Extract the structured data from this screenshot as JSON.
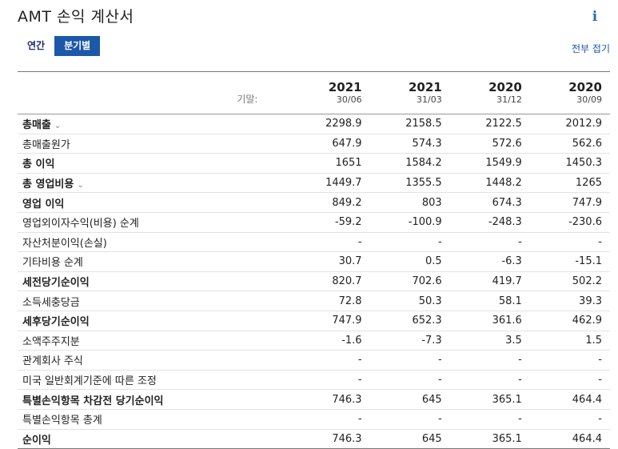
{
  "header": {
    "title": "AMT 손익 계산서",
    "info_icon": "info-icon"
  },
  "tabs": [
    {
      "label": "연간",
      "active": false
    },
    {
      "label": "분기별",
      "active": true
    }
  ],
  "collapse_all_label": "전부 접기",
  "table": {
    "period_end_label": "기말:",
    "periods": [
      {
        "year": "2021",
        "date": "30/06"
      },
      {
        "year": "2021",
        "date": "31/03"
      },
      {
        "year": "2020",
        "date": "31/12"
      },
      {
        "year": "2020",
        "date": "30/09"
      }
    ],
    "rows": [
      {
        "name": "총매출",
        "bold": true,
        "expandable": true,
        "values": [
          "2298.9",
          "2158.5",
          "2122.5",
          "2012.9"
        ]
      },
      {
        "name": "총매출원가",
        "bold": false,
        "expandable": false,
        "values": [
          "647.9",
          "574.3",
          "572.6",
          "562.6"
        ]
      },
      {
        "name": "총 이익",
        "bold": true,
        "expandable": false,
        "values": [
          "1651",
          "1584.2",
          "1549.9",
          "1450.3"
        ]
      },
      {
        "name": "총 영업비용",
        "bold": true,
        "expandable": true,
        "values": [
          "1449.7",
          "1355.5",
          "1448.2",
          "1265"
        ]
      },
      {
        "name": "영업 이익",
        "bold": true,
        "expandable": false,
        "values": [
          "849.2",
          "803",
          "674.3",
          "747.9"
        ]
      },
      {
        "name": "영업외이자수익(비용) 순계",
        "bold": false,
        "expandable": false,
        "values": [
          "-59.2",
          "-100.9",
          "-248.3",
          "-230.6"
        ]
      },
      {
        "name": "자산처분이익(손실)",
        "bold": false,
        "expandable": false,
        "values": [
          "-",
          "-",
          "-",
          "-"
        ]
      },
      {
        "name": "기타비용 순계",
        "bold": false,
        "expandable": false,
        "values": [
          "30.7",
          "0.5",
          "-6.3",
          "-15.1"
        ]
      },
      {
        "name": "세전당기순이익",
        "bold": true,
        "expandable": false,
        "values": [
          "820.7",
          "702.6",
          "419.7",
          "502.2"
        ]
      },
      {
        "name": "소득세충당금",
        "bold": false,
        "expandable": false,
        "values": [
          "72.8",
          "50.3",
          "58.1",
          "39.3"
        ]
      },
      {
        "name": "세후당기순이익",
        "bold": true,
        "expandable": false,
        "values": [
          "747.9",
          "652.3",
          "361.6",
          "462.9"
        ]
      },
      {
        "name": "소액주주지분",
        "bold": false,
        "expandable": false,
        "values": [
          "-1.6",
          "-7.3",
          "3.5",
          "1.5"
        ]
      },
      {
        "name": "관계회사 주식",
        "bold": false,
        "expandable": false,
        "values": [
          "-",
          "-",
          "-",
          "-"
        ]
      },
      {
        "name": "미국 일반회계기준에 따른 조정",
        "bold": false,
        "expandable": false,
        "values": [
          "-",
          "-",
          "-",
          "-"
        ]
      },
      {
        "name": "특별손익항목 차감전 당기순이익",
        "bold": true,
        "expandable": false,
        "values": [
          "746.3",
          "645",
          "365.1",
          "464.4"
        ]
      },
      {
        "name": "특별손익항목 총계",
        "bold": false,
        "expandable": false,
        "values": [
          "-",
          "-",
          "-",
          "-"
        ]
      },
      {
        "name": "순이익",
        "bold": true,
        "expandable": false,
        "values": [
          "746.3",
          "645",
          "365.1",
          "464.4"
        ]
      }
    ]
  },
  "colors": {
    "accent": "#1c58a8",
    "link": "#1c58a8",
    "text": "#222222"
  }
}
